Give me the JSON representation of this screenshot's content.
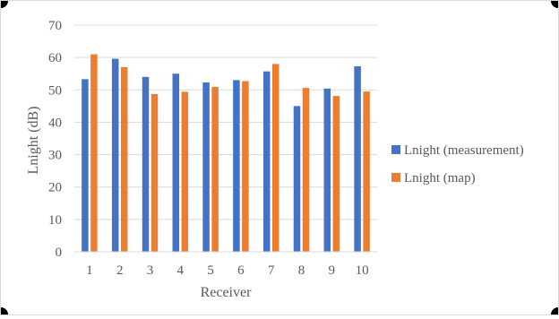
{
  "chart_data": {
    "type": "bar",
    "categories": [
      "1",
      "2",
      "3",
      "4",
      "5",
      "6",
      "7",
      "8",
      "9",
      "10"
    ],
    "series": [
      {
        "name": "Lnight (measurement)",
        "color": "#4472c4",
        "values": [
          53.3,
          59.6,
          54.0,
          55.0,
          52.3,
          53.0,
          55.7,
          45.0,
          50.4,
          57.3
        ]
      },
      {
        "name": "Lnight (map)",
        "color": "#ed7d31",
        "values": [
          61.0,
          57.0,
          48.7,
          49.4,
          50.9,
          52.7,
          58.0,
          50.6,
          48.1,
          49.5
        ]
      }
    ],
    "title": "",
    "xlabel": "Receiver",
    "ylabel": "Lnight (dB)",
    "ylim": [
      0,
      70
    ],
    "yticks": [
      0,
      10,
      20,
      30,
      40,
      50,
      60,
      70
    ],
    "grid": true,
    "legend": "right"
  }
}
